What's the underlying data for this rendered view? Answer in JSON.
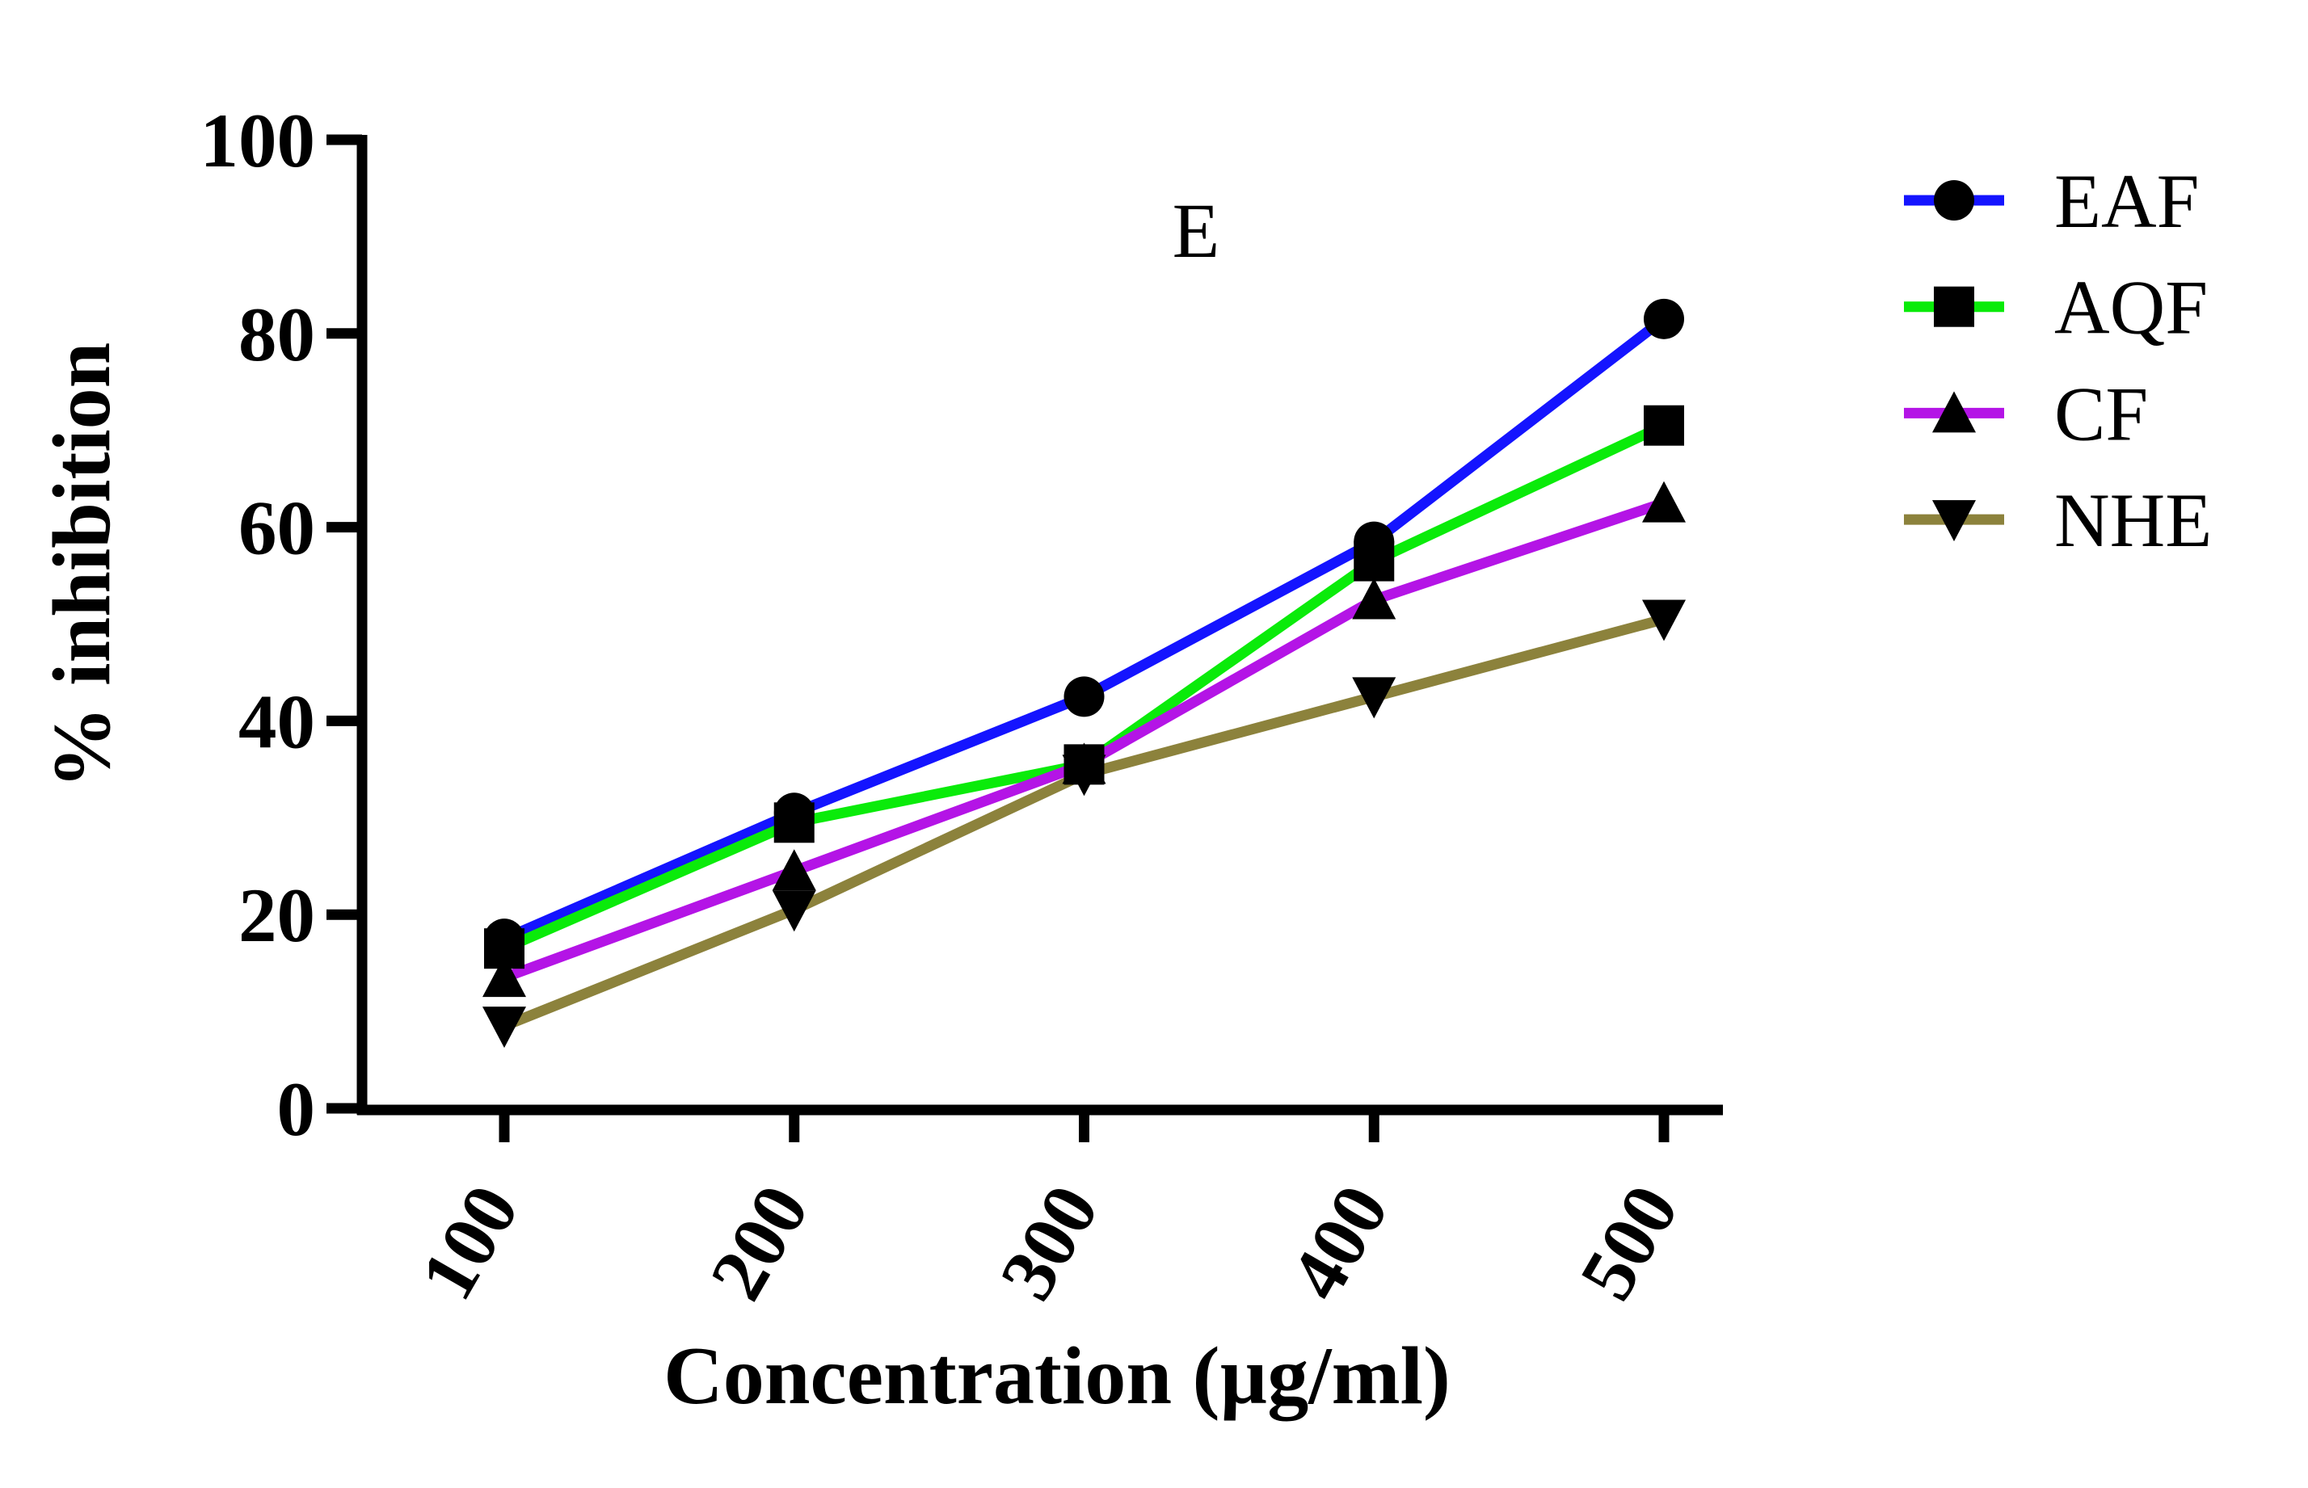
{
  "chart_data": {
    "type": "line",
    "panel_label": "E",
    "xlabel": "Concentration (µg/ml)",
    "ylabel": "% inhibition",
    "x": [
      100,
      200,
      300,
      400,
      500
    ],
    "x_tick_labels": [
      "100",
      "200",
      "300",
      "400",
      "500"
    ],
    "y_ticks": [
      0,
      20,
      40,
      60,
      80,
      100
    ],
    "ylim": [
      0,
      100
    ],
    "grid": false,
    "legend_position": "right-top",
    "axis_color": "#000000",
    "marker_color": "#000000",
    "background_color": "#ffffff",
    "series": [
      {
        "name": "EAF",
        "color": "#1414ff",
        "marker": "circle",
        "values": [
          17.5,
          30.5,
          42.5,
          58.5,
          81.5
        ]
      },
      {
        "name": "AQF",
        "color": "#0aeb0a",
        "marker": "square",
        "values": [
          16.5,
          29.5,
          35.5,
          56.5,
          70.5
        ]
      },
      {
        "name": "CF",
        "color": "#b414e6",
        "marker": "triangle-up",
        "values": [
          13.5,
          24.5,
          35.5,
          52.5,
          62.5
        ]
      },
      {
        "name": "NHE",
        "color": "#8c823c",
        "marker": "triangle-down",
        "values": [
          8.5,
          20.5,
          34.5,
          42.5,
          50.5
        ]
      }
    ]
  }
}
